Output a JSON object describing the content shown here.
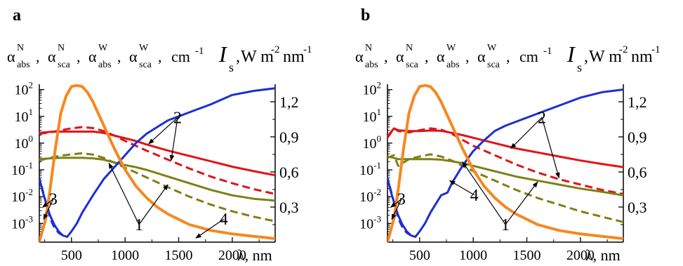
{
  "chart_data": [
    {
      "type": "line",
      "panel_label": "a",
      "left_axis_label": {
        "symbols": [
          {
            "base": "α",
            "sup": "N",
            "sub": "abs"
          },
          {
            "base": "α",
            "sup": "N",
            "sub": "sca"
          },
          {
            "base": "α",
            "sup": "W",
            "sub": "abs"
          },
          {
            "base": "α",
            "sup": "W",
            "sub": "sca"
          }
        ],
        "unit": "cm",
        "unit_exp": "-1"
      },
      "right_axis_label": {
        "symbol": "I",
        "sub": "s",
        "unit": "W m",
        "exp1": "-2",
        "mid": "nm",
        "exp2": "-1"
      },
      "x_axis_label": "λ, nm",
      "x_ticks": [
        500,
        1000,
        1500,
        2000
      ],
      "xlim": [
        200,
        2400
      ],
      "ylim_log": [
        -3.7,
        2.2
      ],
      "y_ticks_log": [
        {
          "base": "10",
          "exp": "2"
        },
        {
          "base": "10",
          "exp": "1"
        },
        {
          "base": "10",
          "exp": "0"
        },
        {
          "base": "10",
          "exp": "-1"
        },
        {
          "base": "10",
          "exp": "-2"
        },
        {
          "base": "10",
          "exp": "-3"
        }
      ],
      "y_ticks_log_values": [
        2,
        1,
        0,
        -1,
        -2,
        -3
      ],
      "right_ticks": [
        "1,2",
        "0,9",
        "0,6",
        "0,3"
      ],
      "right_tick_values": [
        1.2,
        0.9,
        0.6,
        0.3
      ],
      "right_lim": [
        0.0,
        1.35
      ],
      "series": [
        {
          "id": "N_abs",
          "color": "#e0141a",
          "dash": false,
          "axis": "log",
          "x": [
            200,
            300,
            400,
            500,
            600,
            700,
            800,
            900,
            1000,
            1100,
            1200,
            1400,
            1600,
            1800,
            2000,
            2200,
            2400
          ],
          "y": [
            0.38,
            0.42,
            0.43,
            0.43,
            0.43,
            0.43,
            0.38,
            0.28,
            0.18,
            0.08,
            -0.05,
            -0.28,
            -0.48,
            -0.68,
            -0.88,
            -1.05,
            -1.2
          ]
        },
        {
          "id": "N_sca",
          "color": "#e0141a",
          "dash": true,
          "axis": "log",
          "x": [
            200,
            300,
            400,
            500,
            600,
            700,
            800,
            900,
            1000,
            1100,
            1200,
            1400,
            1600,
            1800,
            2000,
            2200,
            2400
          ],
          "y": [
            0.35,
            0.4,
            0.48,
            0.55,
            0.6,
            0.56,
            0.45,
            0.28,
            0.08,
            -0.1,
            -0.28,
            -0.62,
            -0.95,
            -1.25,
            -1.5,
            -1.72,
            -1.9
          ]
        },
        {
          "id": "W_abs",
          "color": "#7f7f16",
          "dash": false,
          "axis": "log",
          "x": [
            200,
            300,
            400,
            500,
            600,
            700,
            800,
            900,
            1000,
            1100,
            1200,
            1400,
            1600,
            1800,
            2000,
            2200,
            2400
          ],
          "y": [
            -0.6,
            -0.57,
            -0.55,
            -0.55,
            -0.55,
            -0.57,
            -0.62,
            -0.72,
            -0.82,
            -0.9,
            -1.0,
            -1.25,
            -1.5,
            -1.75,
            -1.95,
            -2.08,
            -2.15
          ]
        },
        {
          "id": "W_sca",
          "color": "#7f7f16",
          "dash": true,
          "axis": "log",
          "x": [
            200,
            300,
            400,
            500,
            600,
            700,
            800,
            900,
            1000,
            1100,
            1200,
            1400,
            1600,
            1800,
            2000,
            2200,
            2400
          ],
          "y": [
            -0.65,
            -0.55,
            -0.47,
            -0.42,
            -0.38,
            -0.43,
            -0.55,
            -0.73,
            -0.92,
            -1.1,
            -1.28,
            -1.65,
            -2.0,
            -2.3,
            -2.55,
            -2.75,
            -2.92
          ]
        },
        {
          "id": "water_abs",
          "color": "#1c2ed4",
          "dash": false,
          "axis": "log",
          "x": [
            200,
            230,
            260,
            300,
            340,
            380,
            420,
            460,
            500,
            550,
            600,
            700,
            800,
            900,
            1000,
            1100,
            1200,
            1300,
            1400,
            1500,
            1600,
            1800,
            2000,
            2200,
            2400
          ],
          "y": [
            -1.3,
            -1.8,
            -2.2,
            -2.7,
            -3.05,
            -3.3,
            -3.45,
            -3.5,
            -3.3,
            -3.0,
            -2.6,
            -1.95,
            -1.35,
            -0.9,
            -0.45,
            0.0,
            0.35,
            0.6,
            0.85,
            1.0,
            1.15,
            1.45,
            1.8,
            1.95,
            2.05
          ]
        },
        {
          "id": "water_abs_dash",
          "color": "#1c2ed4",
          "dash": true,
          "axis": "log",
          "x": [
            220,
            260,
            300,
            340,
            380,
            420,
            460
          ],
          "y": [
            -1.6,
            -2.2,
            -2.8,
            -3.15,
            -3.35,
            -3.45,
            -3.5
          ]
        },
        {
          "id": "solar",
          "color": "#f6881f",
          "dash": false,
          "axis": "right",
          "x": [
            200,
            260,
            300,
            350,
            400,
            450,
            500,
            550,
            600,
            650,
            700,
            800,
            900,
            1000,
            1100,
            1200,
            1300,
            1400,
            1600,
            1800,
            2000,
            2200,
            2400
          ],
          "y": [
            0.0,
            0.2,
            0.45,
            0.8,
            1.1,
            1.25,
            1.33,
            1.34,
            1.33,
            1.28,
            1.2,
            1.0,
            0.8,
            0.62,
            0.48,
            0.38,
            0.3,
            0.24,
            0.15,
            0.1,
            0.07,
            0.05,
            0.03
          ]
        }
      ],
      "labels": [
        {
          "text": "2",
          "x": 1490,
          "y": 0.75,
          "axis": "log",
          "targets": [
            {
              "x": 1220,
              "y": -0.03
            },
            {
              "x": 1430,
              "y": -0.65
            }
          ]
        },
        {
          "text": "3",
          "x": 330,
          "y": -2.3,
          "axis": "log",
          "targets": [
            {
              "x": 230,
              "y": -2.4
            },
            {
              "x": 240,
              "y": -2.85
            }
          ]
        },
        {
          "text": "1",
          "x": 1130,
          "y": -3.25,
          "axis": "log",
          "targets": [
            {
              "x": 850,
              "y": -0.75
            },
            {
              "x": 1400,
              "y": -1.55
            }
          ]
        },
        {
          "text": "4",
          "x": 1920,
          "y": -3.05,
          "axis": "log",
          "targets": [
            {
              "x": 1660,
              "y": -3.55
            }
          ]
        }
      ]
    },
    {
      "type": "line",
      "panel_label": "b",
      "left_axis_label": {
        "symbols": [
          {
            "base": "α",
            "sup": "N",
            "sub": "abs"
          },
          {
            "base": "α",
            "sup": "N",
            "sub": "sca"
          },
          {
            "base": "α",
            "sup": "W",
            "sub": "abs"
          },
          {
            "base": "α",
            "sup": "W",
            "sub": "sca"
          }
        ],
        "unit": "cm",
        "unit_exp": "-1"
      },
      "right_axis_label": {
        "symbol": "I",
        "sub": "s",
        "unit": "W m",
        "exp1": "-2",
        "mid": "nm",
        "exp2": "-1"
      },
      "x_axis_label": "λ, nm",
      "x_ticks": [
        500,
        1000,
        1500,
        2000
      ],
      "xlim": [
        200,
        2400
      ],
      "ylim_log": [
        -3.7,
        2.2
      ],
      "y_ticks_log": [
        {
          "base": "10",
          "exp": "2"
        },
        {
          "base": "10",
          "exp": "1"
        },
        {
          "base": "10",
          "exp": "0"
        },
        {
          "base": "10",
          "exp": "-1"
        },
        {
          "base": "10",
          "exp": "-2"
        },
        {
          "base": "10",
          "exp": "-3"
        }
      ],
      "y_ticks_log_values": [
        2,
        1,
        0,
        -1,
        -2,
        -3
      ],
      "right_ticks": [
        "1,2",
        "0,9",
        "0,6",
        "0,3"
      ],
      "right_tick_values": [
        1.2,
        0.9,
        0.6,
        0.3
      ],
      "right_lim": [
        0.0,
        1.35
      ],
      "series": [
        {
          "id": "N_abs",
          "color": "#e0141a",
          "dash": false,
          "axis": "log",
          "x": [
            200,
            260,
            300,
            400,
            500,
            600,
            700,
            800,
            900,
            1000,
            1200,
            1400,
            1600,
            1800,
            2000,
            2200,
            2400
          ],
          "y": [
            0.25,
            0.55,
            0.48,
            0.45,
            0.45,
            0.47,
            0.46,
            0.38,
            0.3,
            0.2,
            0.0,
            -0.2,
            -0.35,
            -0.5,
            -0.65,
            -0.78,
            -0.9
          ]
        },
        {
          "id": "N_sca",
          "color": "#e0141a",
          "dash": true,
          "axis": "log",
          "x": [
            200,
            260,
            300,
            400,
            500,
            600,
            700,
            800,
            900,
            1000,
            1200,
            1400,
            1600,
            1800,
            2000,
            2200,
            2400
          ],
          "y": [
            0.2,
            0.55,
            0.45,
            0.4,
            0.48,
            0.55,
            0.5,
            0.35,
            0.12,
            -0.1,
            -0.45,
            -0.8,
            -1.1,
            -1.35,
            -1.55,
            -1.75,
            -1.9
          ]
        },
        {
          "id": "W_abs",
          "color": "#7f7f16",
          "dash": false,
          "axis": "log",
          "x": [
            200,
            260,
            300,
            400,
            500,
            600,
            700,
            800,
            900,
            1000,
            1200,
            1400,
            1600,
            1800,
            2000,
            2200,
            2400
          ],
          "y": [
            -0.5,
            -0.55,
            -0.6,
            -0.6,
            -0.6,
            -0.6,
            -0.62,
            -0.68,
            -0.75,
            -0.85,
            -1.05,
            -1.25,
            -1.4,
            -1.55,
            -1.7,
            -1.82,
            -1.95
          ]
        },
        {
          "id": "W_sca",
          "color": "#7f7f16",
          "dash": true,
          "axis": "log",
          "x": [
            200,
            260,
            300,
            400,
            500,
            600,
            700,
            800,
            900,
            1000,
            1200,
            1400,
            1600,
            1800,
            2000,
            2200,
            2400
          ],
          "y": [
            -0.55,
            -0.45,
            -0.85,
            -0.6,
            -0.5,
            -0.42,
            -0.5,
            -0.65,
            -0.85,
            -1.05,
            -1.4,
            -1.75,
            -2.05,
            -2.3,
            -2.55,
            -2.75,
            -2.95
          ]
        },
        {
          "id": "water_abs",
          "color": "#1c2ed4",
          "dash": false,
          "axis": "log",
          "x": [
            200,
            230,
            260,
            300,
            340,
            380,
            420,
            460,
            500,
            550,
            600,
            700,
            760,
            800,
            900,
            1000,
            1100,
            1200,
            1300,
            1400,
            1600,
            1800,
            2000,
            2200,
            2400
          ],
          "y": [
            -1.3,
            -1.8,
            -2.2,
            -2.7,
            -3.05,
            -3.3,
            -3.45,
            -3.5,
            -3.3,
            -3.0,
            -2.6,
            -1.95,
            -1.85,
            -1.5,
            -0.85,
            -0.3,
            0.1,
            0.45,
            0.65,
            0.8,
            1.1,
            1.4,
            1.7,
            1.9,
            2.0
          ]
        },
        {
          "id": "water_abs_dash",
          "color": "#1c2ed4",
          "dash": true,
          "axis": "log",
          "x": [
            220,
            260,
            300,
            340,
            380,
            420,
            460
          ],
          "y": [
            -1.6,
            -2.2,
            -2.8,
            -3.15,
            -3.35,
            -3.45,
            -3.5
          ]
        },
        {
          "id": "solar",
          "color": "#f6881f",
          "dash": false,
          "axis": "right",
          "x": [
            200,
            260,
            300,
            350,
            400,
            450,
            500,
            550,
            600,
            650,
            700,
            800,
            900,
            1000,
            1100,
            1200,
            1300,
            1400,
            1600,
            1800,
            2000,
            2200,
            2400
          ],
          "y": [
            0.0,
            0.2,
            0.45,
            0.8,
            1.1,
            1.25,
            1.33,
            1.34,
            1.33,
            1.28,
            1.2,
            1.0,
            0.8,
            0.62,
            0.48,
            0.38,
            0.3,
            0.24,
            0.15,
            0.1,
            0.07,
            0.05,
            0.03
          ]
        }
      ],
      "labels": [
        {
          "text": "2",
          "x": 1640,
          "y": 0.75,
          "axis": "log",
          "targets": [
            {
              "x": 1350,
              "y": -0.2
            },
            {
              "x": 1800,
              "y": -1.3
            }
          ]
        },
        {
          "text": "3",
          "x": 330,
          "y": -2.3,
          "axis": "log",
          "targets": [
            {
              "x": 230,
              "y": -2.4
            },
            {
              "x": 240,
              "y": -2.85
            }
          ]
        },
        {
          "text": "1",
          "x": 1300,
          "y": -3.25,
          "axis": "log",
          "targets": [
            {
              "x": 900,
              "y": -0.7
            },
            {
              "x": 1600,
              "y": -1.45
            }
          ]
        },
        {
          "text": "4",
          "x": 1010,
          "y": -2.15,
          "axis": "log",
          "targets": [
            {
              "x": 780,
              "y": -1.4
            }
          ]
        }
      ]
    }
  ]
}
